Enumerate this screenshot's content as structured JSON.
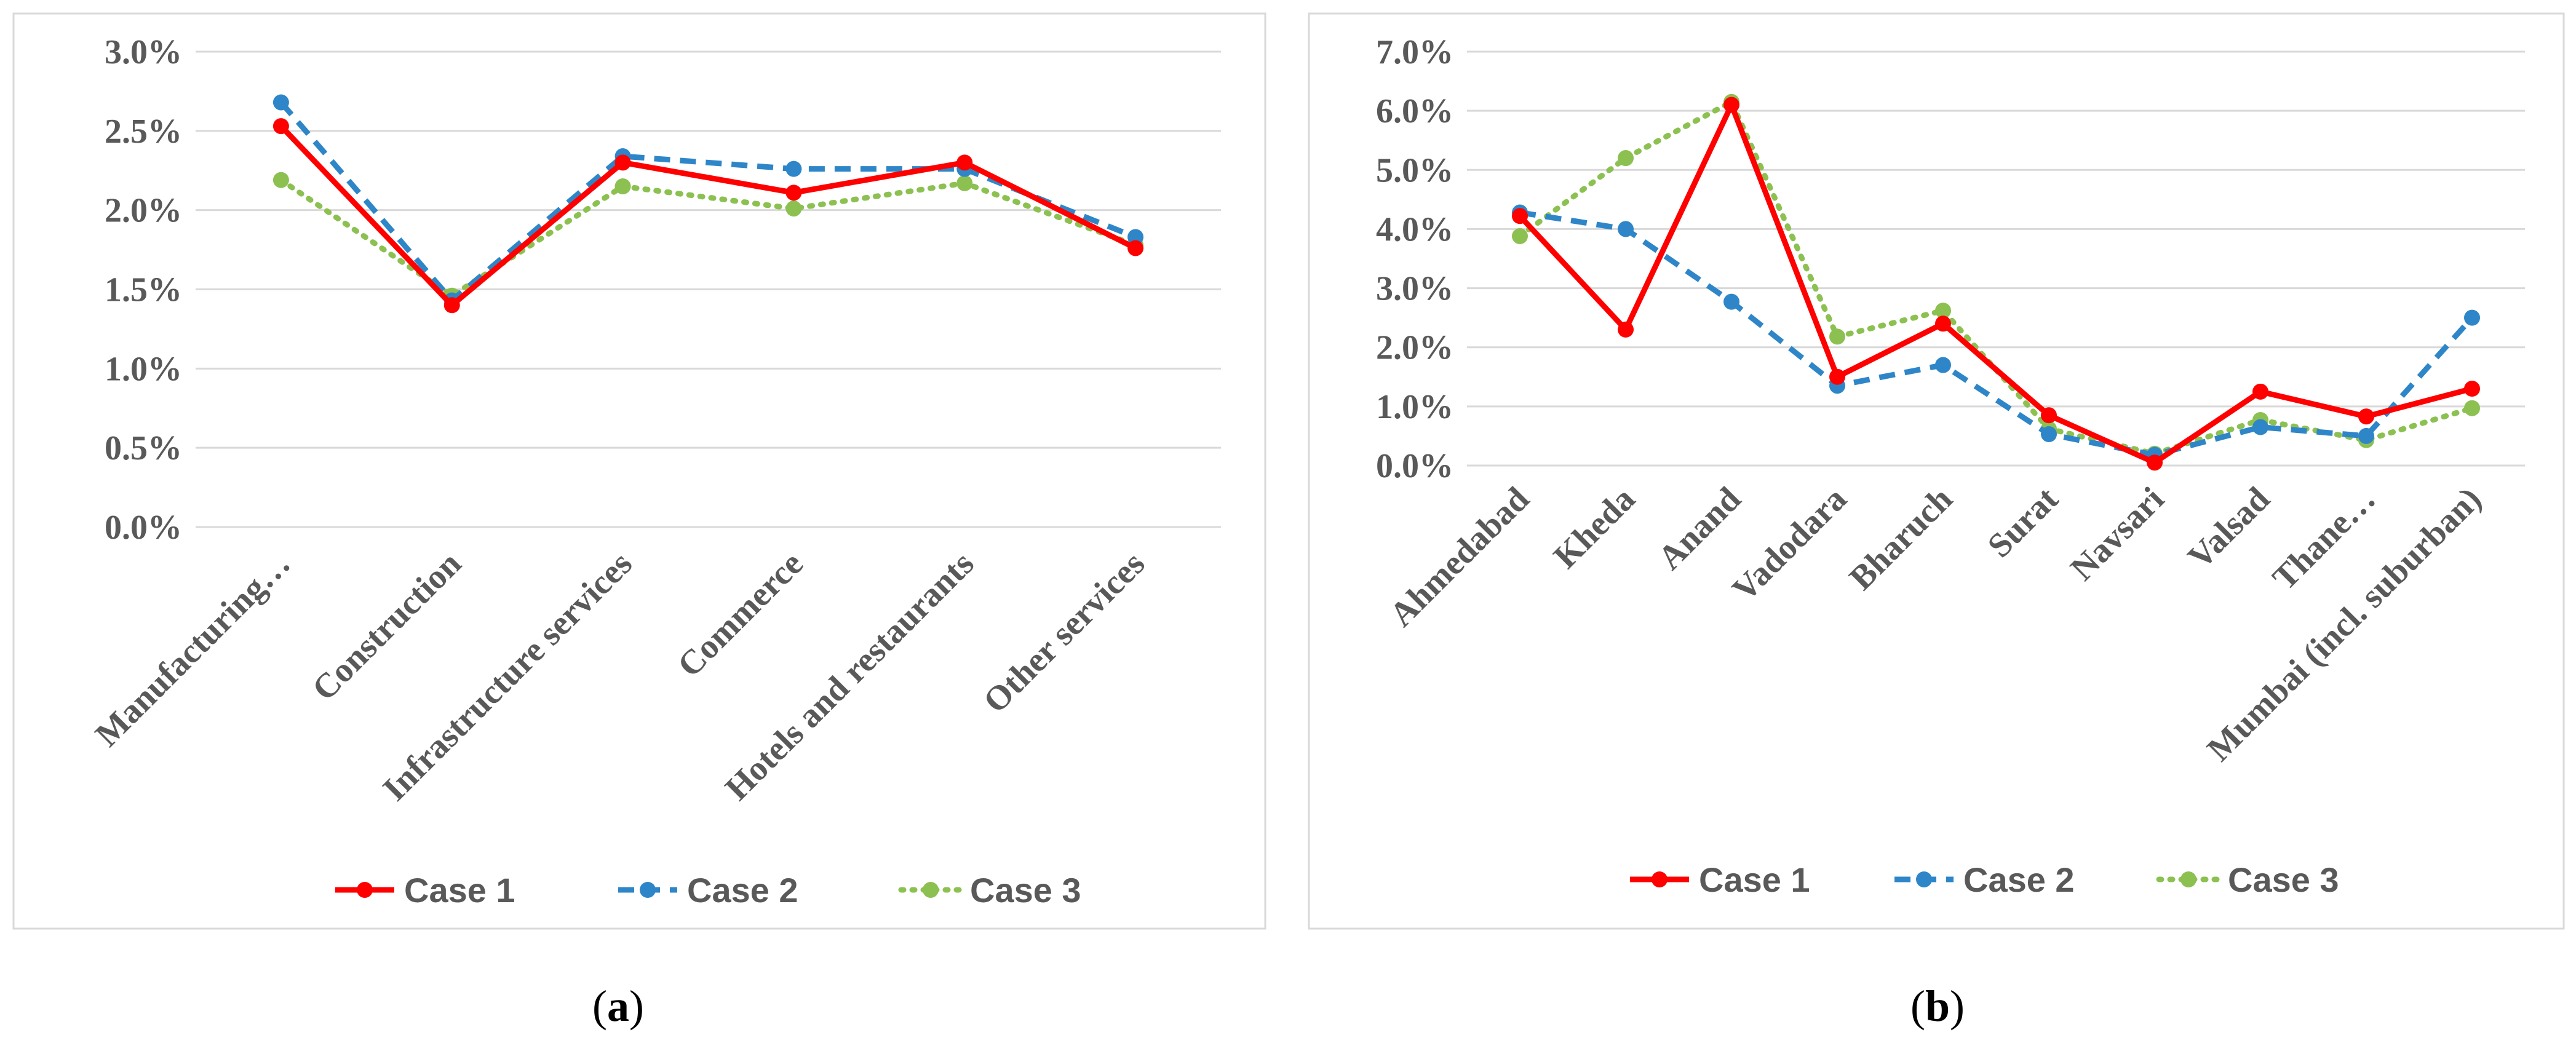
{
  "captions": {
    "a_letter": "a",
    "b_letter": "b",
    "open": "(",
    "close": ")"
  },
  "legend": [
    {
      "name": "Case 1",
      "color": "#ff0000",
      "dash": "solid"
    },
    {
      "name": "Case 2",
      "color": "#2e86c8",
      "dash": "dashed"
    },
    {
      "name": "Case 3",
      "color": "#8cc152",
      "dash": "dotted"
    }
  ],
  "chart_data": [
    {
      "id": "a",
      "type": "line",
      "title": "",
      "xlabel": "",
      "ylabel": "",
      "ylim": [
        0,
        0.03
      ],
      "y_ticks": [
        "0.0%",
        "0.5%",
        "1.0%",
        "1.5%",
        "2.0%",
        "2.5%",
        "3.0%"
      ],
      "categories": [
        "Manufacturing…",
        "Construction",
        "Infrastructure services",
        "Commerce",
        "Hotels and restaurants",
        "Other services"
      ],
      "series": [
        {
          "name": "Case 1",
          "values": [
            0.0253,
            0.014,
            0.023,
            0.0211,
            0.023,
            0.0176
          ]
        },
        {
          "name": "Case 2",
          "values": [
            0.0268,
            0.0143,
            0.0234,
            0.0226,
            0.0226,
            0.0183
          ]
        },
        {
          "name": "Case 3",
          "values": [
            0.0219,
            0.0146,
            0.0215,
            0.0201,
            0.0217,
            0.0178
          ]
        }
      ],
      "grid": true,
      "legend_position": "bottom"
    },
    {
      "id": "b",
      "type": "line",
      "title": "",
      "xlabel": "",
      "ylabel": "",
      "ylim": [
        0,
        0.07
      ],
      "y_ticks": [
        "0.0%",
        "1.0%",
        "2.0%",
        "3.0%",
        "4.0%",
        "5.0%",
        "6.0%",
        "7.0%"
      ],
      "categories": [
        "Ahmedabad",
        "Kheda",
        "Anand",
        "Vadodara",
        "Bharuch",
        "Surat",
        "Navsari",
        "Valsad",
        "Thane…",
        "Mumbai (incl. suburban)"
      ],
      "series": [
        {
          "name": "Case 1",
          "values": [
            0.0422,
            0.023,
            0.061,
            0.015,
            0.024,
            0.0085,
            0.0005,
            0.0125,
            0.0083,
            0.013
          ]
        },
        {
          "name": "Case 2",
          "values": [
            0.0428,
            0.04,
            0.0277,
            0.0135,
            0.017,
            0.0053,
            0.0018,
            0.0065,
            0.005,
            0.025
          ]
        },
        {
          "name": "Case 3",
          "values": [
            0.0388,
            0.052,
            0.0615,
            0.0218,
            0.0262,
            0.0062,
            0.002,
            0.0077,
            0.0043,
            0.0097
          ]
        }
      ],
      "grid": true,
      "legend_position": "bottom"
    }
  ]
}
